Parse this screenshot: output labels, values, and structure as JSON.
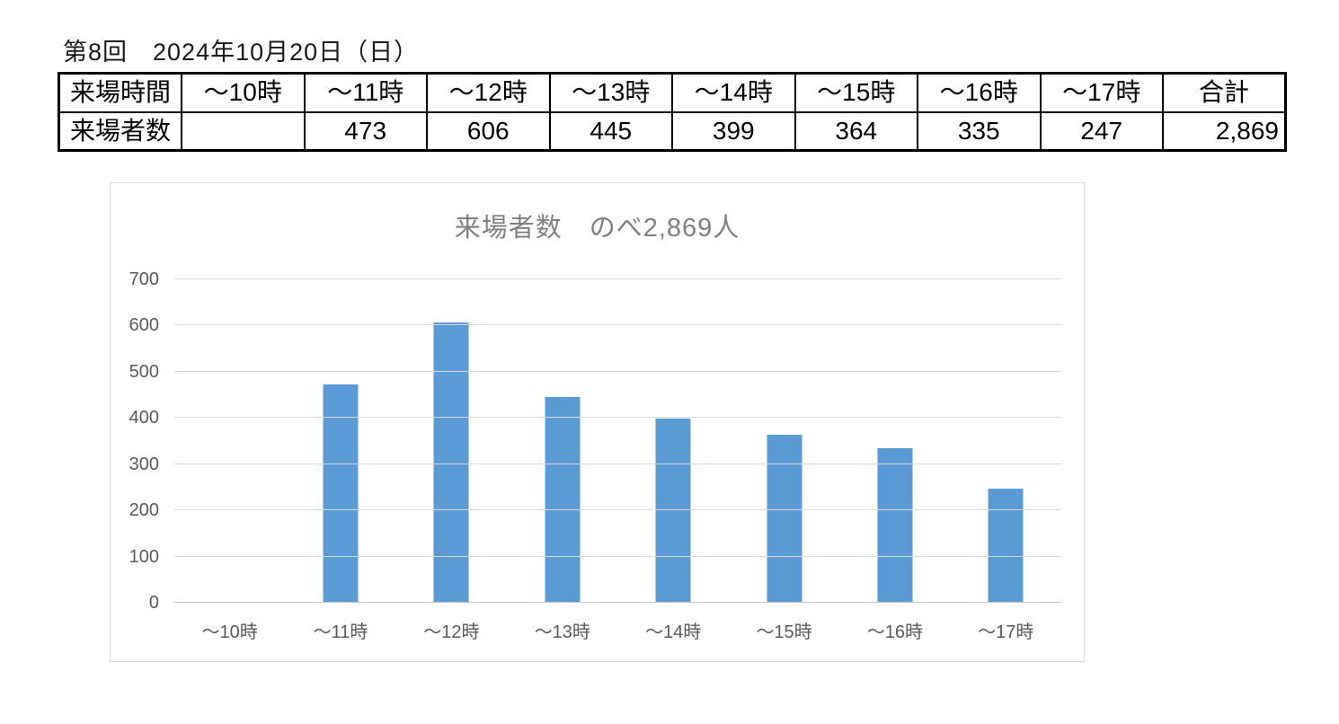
{
  "page": {
    "heading": "第8回　2024年10月20日（日）"
  },
  "table": {
    "row_header_time": "来場時間",
    "row_header_count": "来場者数",
    "time_slots": [
      "～10時",
      "～11時",
      "～12時",
      "～13時",
      "～14時",
      "～15時",
      "～16時",
      "～17時"
    ],
    "total_label": "合計",
    "counts": [
      "",
      "473",
      "606",
      "445",
      "399",
      "364",
      "335",
      "247"
    ],
    "total_value": "2,869"
  },
  "chart_data": {
    "type": "bar",
    "title": "来場者数　のべ2,869人",
    "categories": [
      "～10時",
      "～11時",
      "～12時",
      "～13時",
      "～14時",
      "～15時",
      "～16時",
      "～17時"
    ],
    "values": [
      null,
      473,
      606,
      445,
      399,
      364,
      335,
      247
    ],
    "xlabel": "",
    "ylabel": "",
    "ylim": [
      0,
      700
    ],
    "yticks": [
      0,
      100,
      200,
      300,
      400,
      500,
      600,
      700
    ],
    "grid": true,
    "legend_position": "none",
    "bar_color": "#5b9bd5",
    "title_color": "#7f7f7f",
    "axis_label_color": "#595959",
    "gridline_color": "#d9d9d9"
  }
}
